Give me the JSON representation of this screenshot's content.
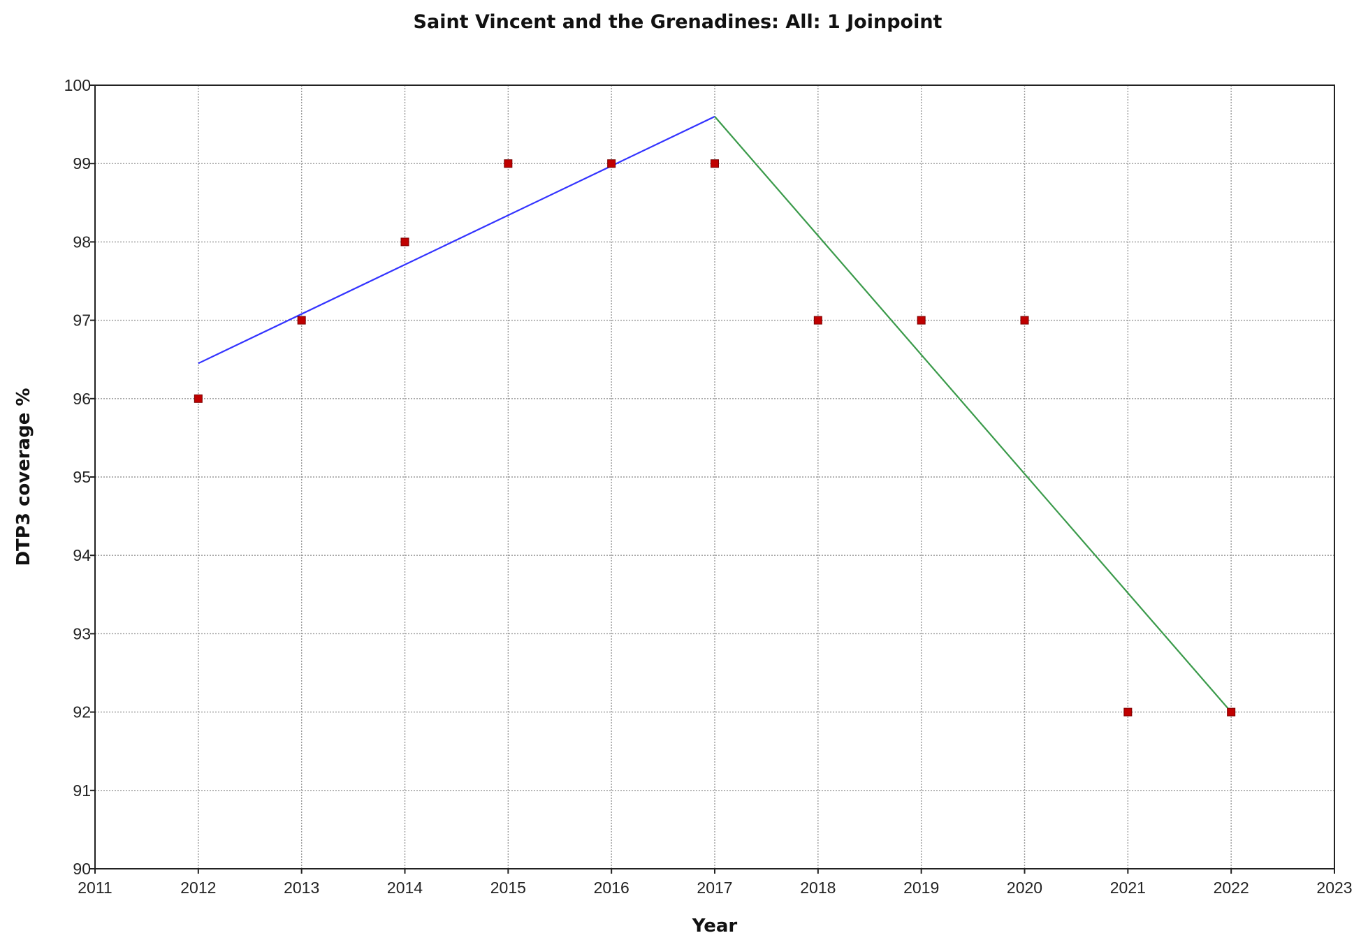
{
  "chart_data": {
    "type": "scatter",
    "title": "Saint Vincent and the Grenadines: All: 1 Joinpoint",
    "xlabel": "Year",
    "ylabel": "DTP3 coverage %",
    "xlim": [
      2011,
      2023
    ],
    "ylim": [
      90,
      100
    ],
    "xticks": [
      "2011",
      "2012",
      "2013",
      "2014",
      "2015",
      "2016",
      "2017",
      "2018",
      "2019",
      "2020",
      "2021",
      "2022",
      "2023"
    ],
    "yticks": [
      "90",
      "91",
      "92",
      "93",
      "94",
      "95",
      "96",
      "97",
      "98",
      "99",
      "100"
    ],
    "grid": true,
    "observed": {
      "marker_color": "#c00000",
      "points": [
        {
          "x": 2012,
          "y": 96
        },
        {
          "x": 2013,
          "y": 97
        },
        {
          "x": 2014,
          "y": 98
        },
        {
          "x": 2015,
          "y": 99
        },
        {
          "x": 2016,
          "y": 99
        },
        {
          "x": 2017,
          "y": 99
        },
        {
          "x": 2018,
          "y": 97
        },
        {
          "x": 2019,
          "y": 97
        },
        {
          "x": 2020,
          "y": 97
        },
        {
          "x": 2021,
          "y": 92
        },
        {
          "x": 2022,
          "y": 92
        }
      ]
    },
    "segments": [
      {
        "color": "#3333ff",
        "points": [
          {
            "x": 2012,
            "y": 96.45
          },
          {
            "x": 2017,
            "y": 99.6
          }
        ]
      },
      {
        "color": "#3a9a4a",
        "points": [
          {
            "x": 2017,
            "y": 99.6
          },
          {
            "x": 2022,
            "y": 92.0
          }
        ]
      }
    ]
  }
}
